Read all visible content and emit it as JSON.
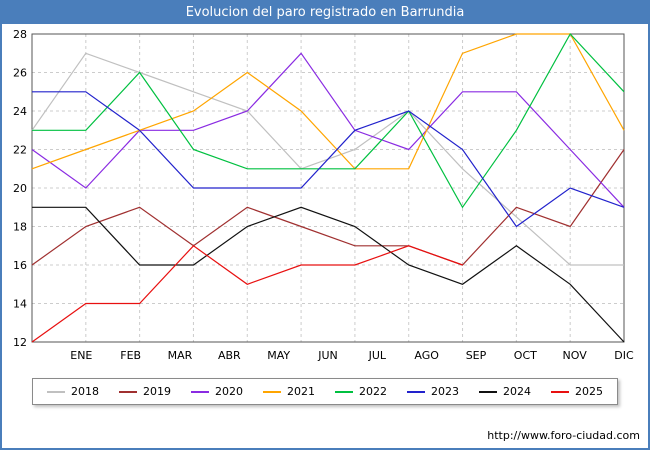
{
  "title": "Evolucion del paro registrado en Barrundia",
  "footer": {
    "url": "http://www.foro-ciudad.com"
  },
  "colors": {
    "frame": "#4a7ebb",
    "titlebar": "#4a7ebb",
    "grid": "#cccccc",
    "plot_border": "#555555",
    "axis_text": "#000000"
  },
  "chart_data": {
    "type": "line",
    "title": "Evolucion del paro registrado en Barrundia",
    "xlabel": "",
    "ylabel": "",
    "ylim": [
      12,
      28
    ],
    "yticks": [
      12,
      14,
      16,
      18,
      20,
      22,
      24,
      26,
      28
    ],
    "grid": true,
    "legend_position": "bottom",
    "categories": [
      "ENE",
      "FEB",
      "MAR",
      "ABR",
      "MAY",
      "JUN",
      "JUL",
      "AGO",
      "SEP",
      "OCT",
      "NOV",
      "DIC"
    ],
    "series": [
      {
        "name": "2018",
        "color": "#c0c0c0",
        "values": [
          23,
          27,
          26,
          25,
          24,
          21,
          22,
          24,
          21,
          18.5,
          16,
          16
        ]
      },
      {
        "name": "2019",
        "color": "#a03030",
        "values": [
          16,
          18,
          19,
          17,
          19,
          18,
          17,
          17,
          16,
          19,
          18,
          22
        ]
      },
      {
        "name": "2020",
        "color": "#8a2be2",
        "values": [
          22,
          20,
          23,
          23,
          24,
          27,
          23,
          22,
          25,
          25,
          22,
          19
        ]
      },
      {
        "name": "2021",
        "color": "#ffa500",
        "values": [
          21,
          22,
          23,
          24,
          26,
          24,
          21,
          21,
          27,
          28,
          28,
          23
        ]
      },
      {
        "name": "2022",
        "color": "#00c040",
        "values": [
          23,
          23,
          26,
          22,
          21,
          21,
          21,
          24,
          19,
          23,
          28,
          25
        ]
      },
      {
        "name": "2023",
        "color": "#2222cc",
        "values": [
          25,
          25,
          23,
          20,
          20,
          20,
          23,
          24,
          22,
          18,
          20,
          19
        ]
      },
      {
        "name": "2024",
        "color": "#111111",
        "values": [
          19,
          19,
          16,
          16,
          18,
          19,
          18,
          16,
          15,
          17,
          15,
          12
        ]
      },
      {
        "name": "2025",
        "color": "#e81010",
        "values": [
          12,
          14,
          14,
          17,
          15,
          16,
          16,
          17,
          16,
          null,
          null,
          null
        ]
      }
    ]
  }
}
